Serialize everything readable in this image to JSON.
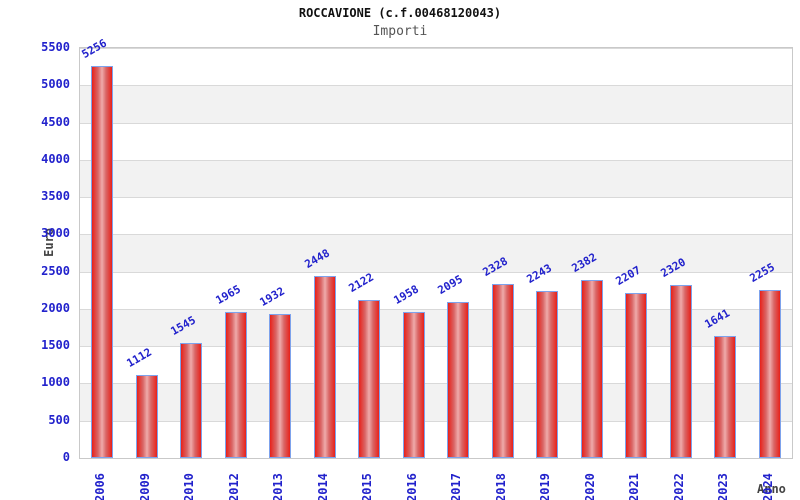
{
  "chart_data": {
    "type": "bar",
    "title": "ROCCAVIONE (c.f.00468120043)",
    "subtitle": "Importi",
    "xlabel": "Anno",
    "ylabel": "Euro",
    "categories": [
      "2006",
      "2009",
      "2010",
      "2012",
      "2013",
      "2014",
      "2015",
      "2016",
      "2017",
      "2018",
      "2019",
      "2020",
      "2021",
      "2022",
      "2023",
      "2024"
    ],
    "values": [
      5256,
      1112,
      1545,
      1965,
      1932,
      2448,
      2122,
      1958,
      2095,
      2328,
      2243,
      2382,
      2207,
      2320,
      1641,
      2255
    ],
    "ylim": [
      0,
      5500
    ],
    "ytick_interval": 500,
    "yticks": [
      0,
      500,
      1000,
      1500,
      2000,
      2500,
      3000,
      3500,
      4000,
      4500,
      5000,
      5500
    ],
    "grid": true,
    "legend": "none",
    "colors": {
      "bar_edge": "#e8211a",
      "bar_mid": "#d96666",
      "bar_center": "#efaaaa",
      "bar_border": "#7da2ec",
      "tick_label": "#2222cc",
      "value_label": "#2222cc",
      "axis_title": "#444444",
      "title": "#111111",
      "subtitle": "#555555",
      "band": "#f2f2f2",
      "gridline": "#d9d9d9",
      "plot_border": "#c9c9c9"
    }
  }
}
